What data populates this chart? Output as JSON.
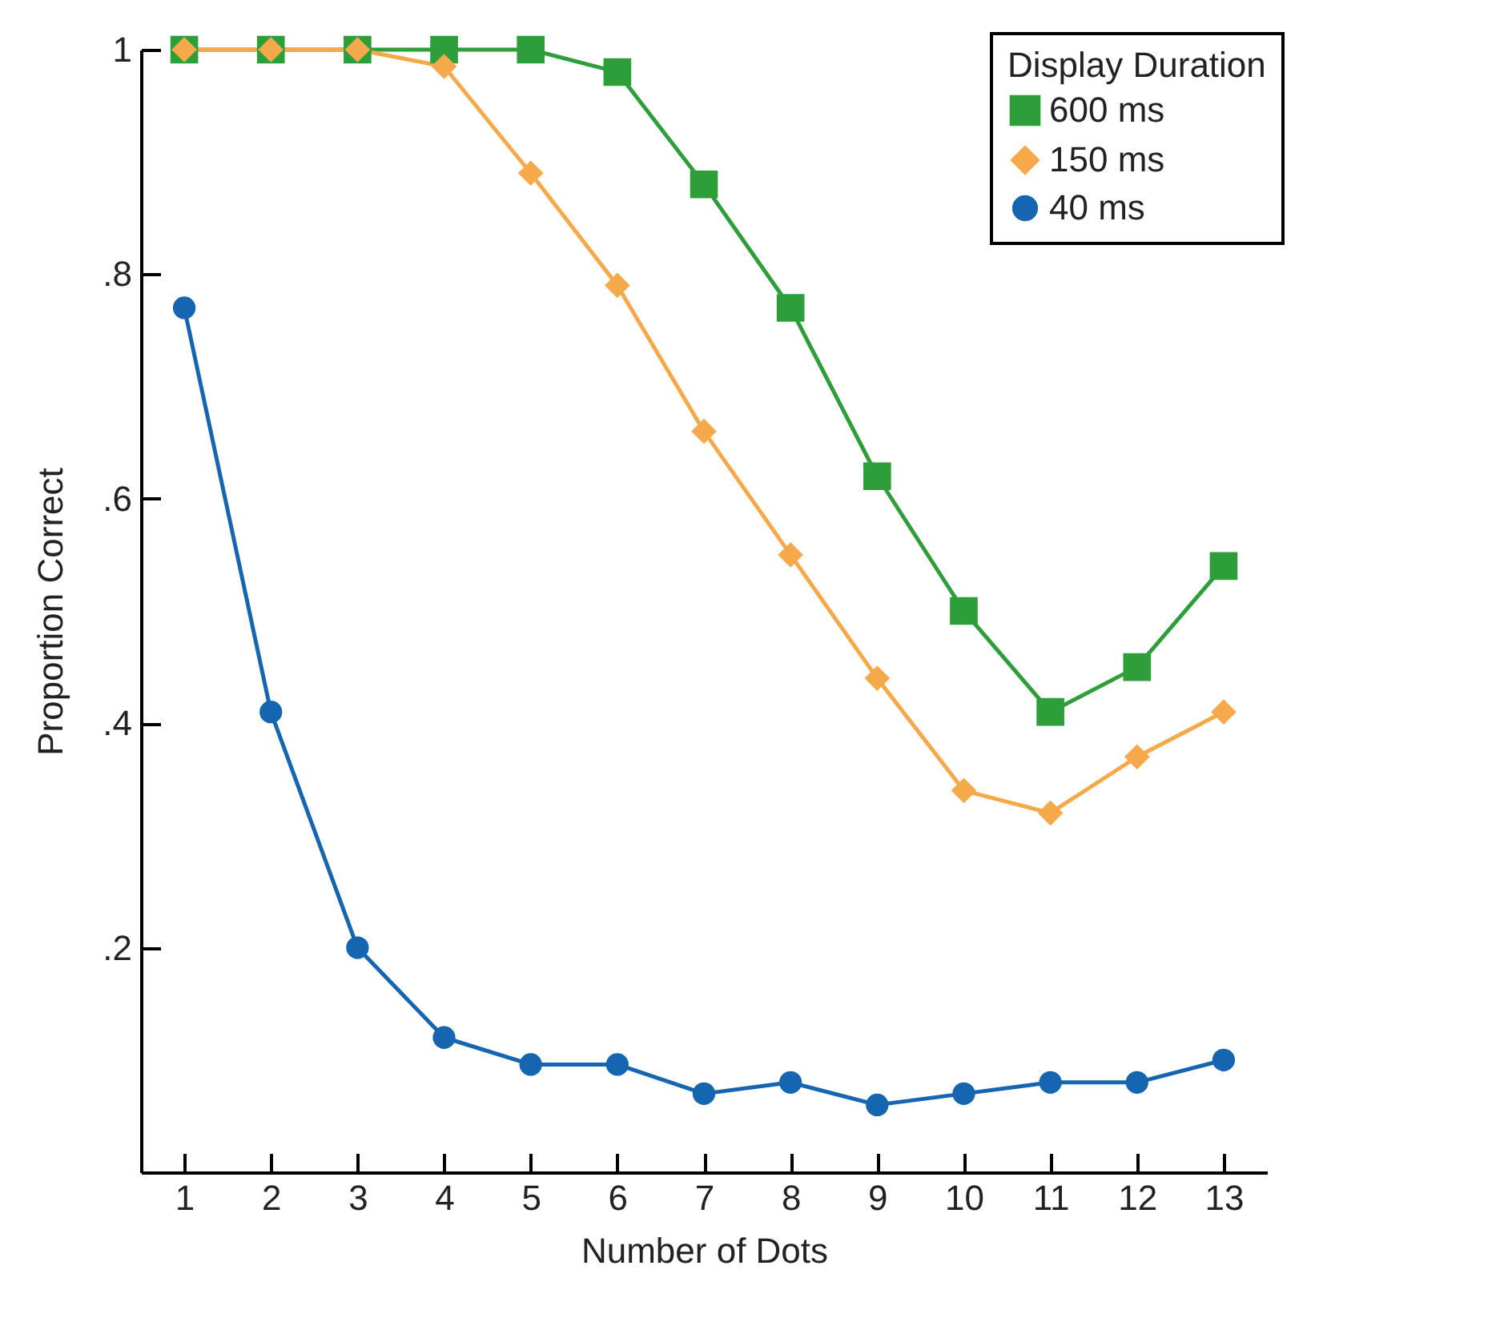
{
  "chart_data": {
    "type": "line",
    "xlabel": "Number of Dots",
    "ylabel": "Proportion Correct",
    "legend_title": "Display Duration",
    "legend": "top right",
    "grid": false,
    "line_style": "solid",
    "x": [
      1,
      2,
      3,
      4,
      5,
      6,
      7,
      8,
      9,
      10,
      11,
      12,
      13
    ],
    "xlim": [
      0.5,
      13.5
    ],
    "xticks": [
      1,
      2,
      3,
      4,
      5,
      6,
      7,
      8,
      9,
      10,
      11,
      12,
      13
    ],
    "ylim": [
      0,
      1
    ],
    "yticks": [
      {
        "value": 0.2,
        "label": ".2"
      },
      {
        "value": 0.4,
        "label": ".4"
      },
      {
        "value": 0.6,
        "label": ".6"
      },
      {
        "value": 0.8,
        "label": ".8"
      },
      1
    ],
    "series": [
      {
        "name": "600 ms",
        "color": "#2e9e3a",
        "marker": "square",
        "values": [
          1,
          1,
          1,
          1,
          1,
          0.98,
          0.88,
          0.77,
          0.62,
          0.5,
          0.41,
          0.45,
          0.54
        ]
      },
      {
        "name": "150 ms",
        "color": "#f5a94a",
        "marker": "diamond",
        "values": [
          1,
          1,
          1,
          0.985,
          0.89,
          0.79,
          0.66,
          0.55,
          0.44,
          0.34,
          0.32,
          0.37,
          0.41
        ]
      },
      {
        "name": "40 ms",
        "color": "#1565b0",
        "marker": "circle",
        "values": [
          0.77,
          0.41,
          0.2,
          0.12,
          0.096,
          0.096,
          0.07,
          0.08,
          0.06,
          0.07,
          0.08,
          0.08,
          0.1
        ]
      }
    ]
  }
}
